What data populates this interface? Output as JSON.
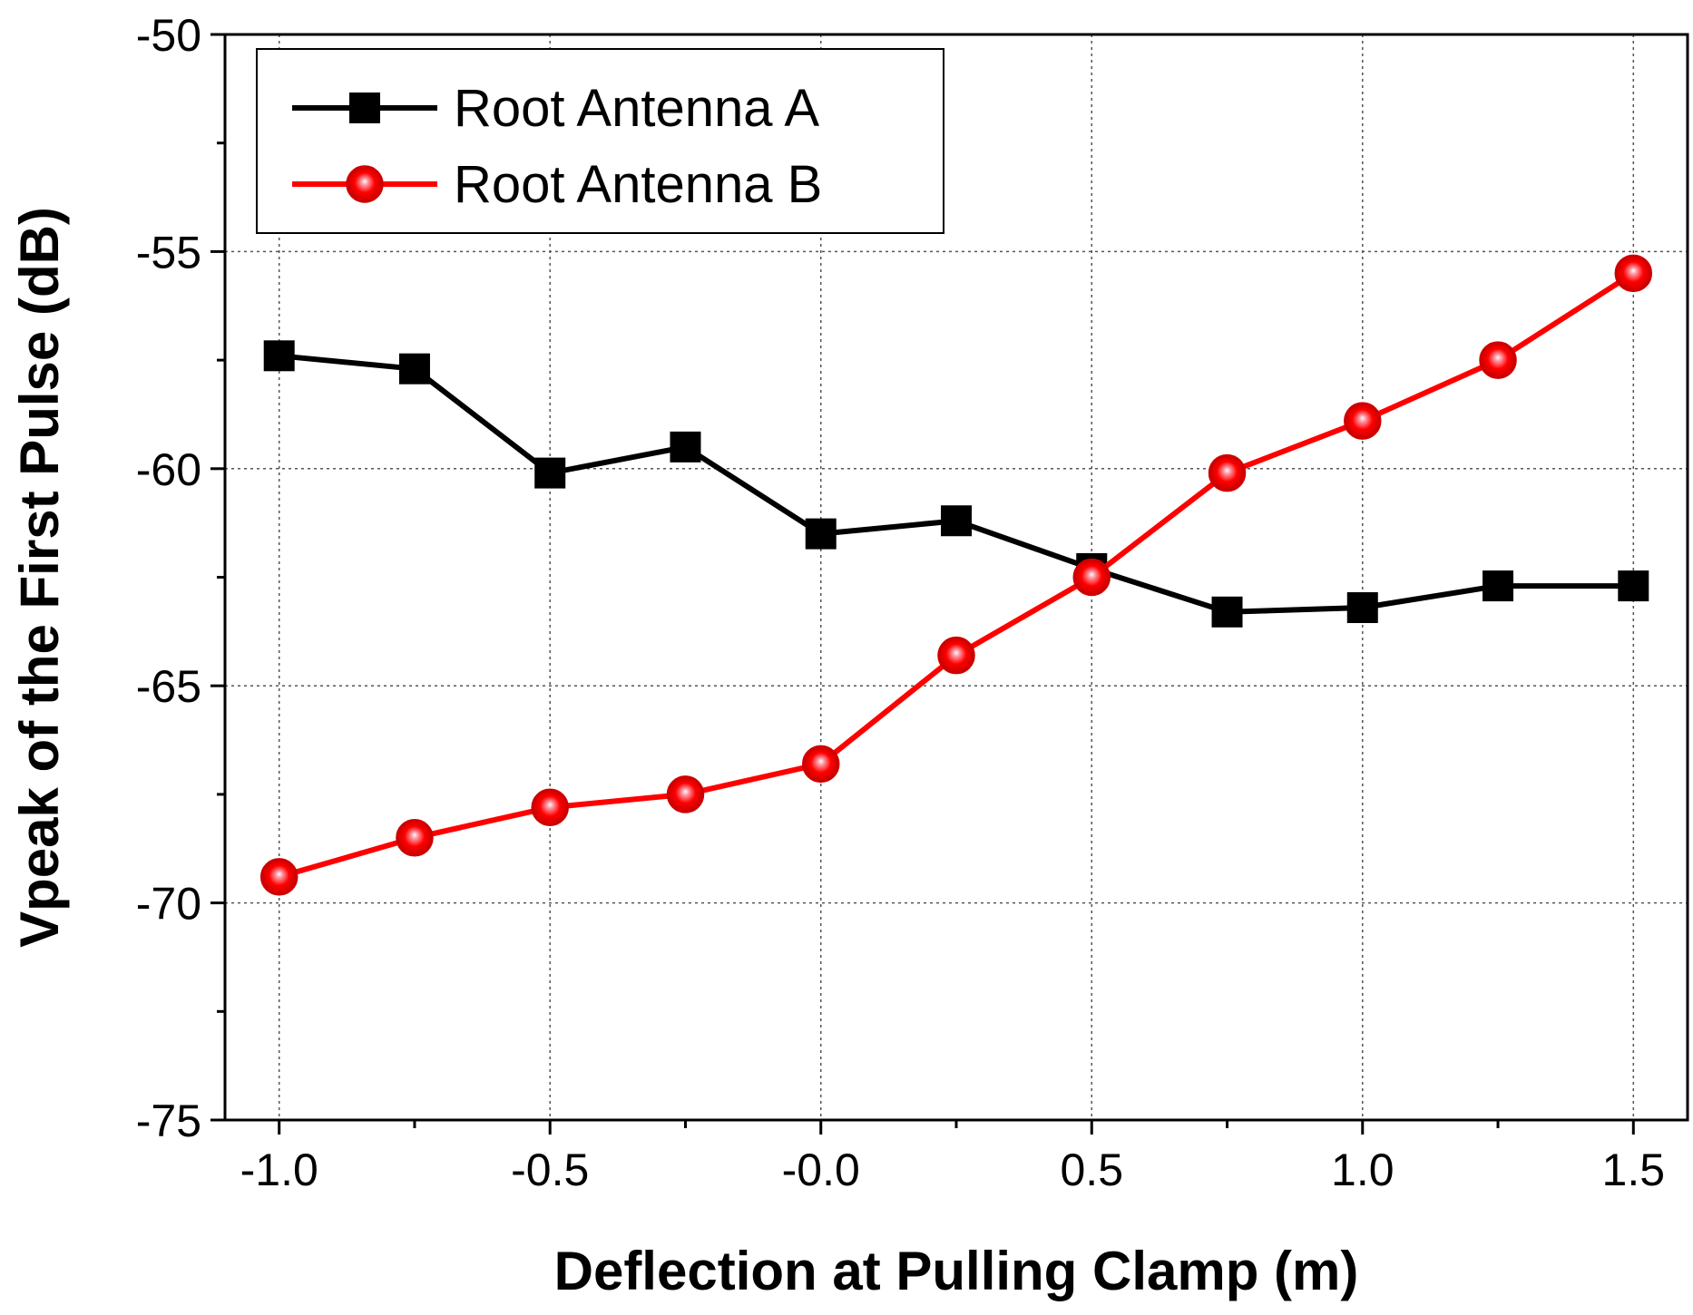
{
  "chart_data": {
    "type": "line",
    "xlabel": "Deflection at Pulling Clamp (m)",
    "ylabel": "Vpeak of the First Pulse (dB)",
    "x": [
      -1.0,
      -0.75,
      -0.5,
      -0.25,
      0.0,
      0.25,
      0.5,
      0.75,
      1.0,
      1.25,
      1.5
    ],
    "xlim": [
      -1.1,
      1.6
    ],
    "ylim": [
      -75,
      -50
    ],
    "xticks": [
      -1.0,
      -0.5,
      0.0,
      0.5,
      1.0,
      1.5
    ],
    "xtick_labels": [
      "-1.0",
      "-0.5",
      "-0.0",
      "0.5",
      "1.0",
      "1.5"
    ],
    "yticks": [
      -75,
      -70,
      -65,
      -60,
      -55,
      -50
    ],
    "ytick_labels": [
      "-75",
      "-70",
      "-65",
      "-60",
      "-55",
      "-50"
    ],
    "grid": true,
    "legend_position": "top-left",
    "series": [
      {
        "name": "Root Antenna A",
        "marker": "square",
        "color": "#000000",
        "values": [
          -57.4,
          -57.7,
          -60.1,
          -59.5,
          -61.5,
          -61.2,
          -62.3,
          -63.3,
          -63.2,
          -62.7,
          -62.7
        ]
      },
      {
        "name": "Root Antenna B",
        "marker": "circle",
        "color": "#ff0000",
        "values": [
          -69.4,
          -68.5,
          -67.8,
          -67.5,
          -66.8,
          -64.3,
          -62.5,
          -60.1,
          -58.9,
          -57.5,
          -55.5
        ]
      }
    ]
  }
}
